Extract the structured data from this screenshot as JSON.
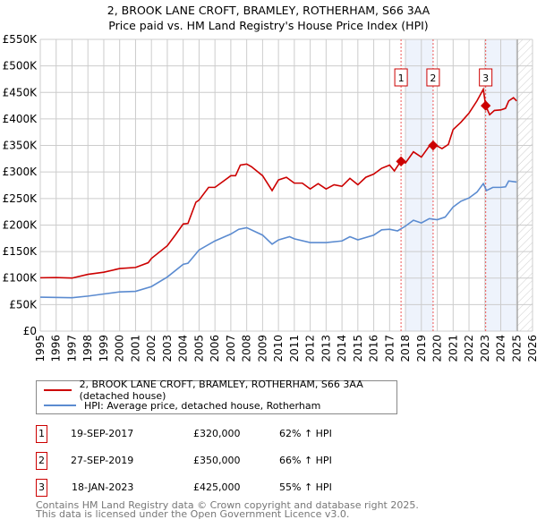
{
  "chart_data": {
    "type": "line",
    "title": "2, BROOK LANE CROFT, BRAMLEY, ROTHERHAM, S66 3AA",
    "subtitle": "Price paid vs. HM Land Registry's House Price Index (HPI)",
    "xlim": [
      1995,
      2026
    ],
    "ylim": [
      0,
      550000
    ],
    "grid": true,
    "y_ticks": [
      {
        "v": 0,
        "label": "£0"
      },
      {
        "v": 50000,
        "label": "£50K"
      },
      {
        "v": 100000,
        "label": "£100K"
      },
      {
        "v": 150000,
        "label": "£150K"
      },
      {
        "v": 200000,
        "label": "£200K"
      },
      {
        "v": 250000,
        "label": "£250K"
      },
      {
        "v": 300000,
        "label": "£300K"
      },
      {
        "v": 350000,
        "label": "£350K"
      },
      {
        "v": 400000,
        "label": "£400K"
      },
      {
        "v": 450000,
        "label": "£450K"
      },
      {
        "v": 500000,
        "label": "£500K"
      },
      {
        "v": 550000,
        "label": "£550K"
      }
    ],
    "x_ticks": [
      "1995",
      "1996",
      "1997",
      "1998",
      "1999",
      "2000",
      "2001",
      "2002",
      "2003",
      "2004",
      "2005",
      "2006",
      "2007",
      "2008",
      "2009",
      "2010",
      "2011",
      "2012",
      "2013",
      "2014",
      "2015",
      "2016",
      "2017",
      "2018",
      "2019",
      "2020",
      "2021",
      "2022",
      "2023",
      "2024",
      "2025",
      "2026"
    ],
    "series": [
      {
        "name": "2, BROOK LANE CROFT, BRAMLEY, ROTHERHAM, S66 3AA (detached house)",
        "color": "#cc0000",
        "points": [
          [
            1995,
            100600
          ],
          [
            1996,
            101000
          ],
          [
            1997,
            100000
          ],
          [
            1998,
            107000
          ],
          [
            1999,
            111000
          ],
          [
            2000,
            118000
          ],
          [
            2001,
            120000
          ],
          [
            2001.8,
            129000
          ],
          [
            2002,
            137000
          ],
          [
            2003,
            161000
          ],
          [
            2003.5,
            181000
          ],
          [
            2004,
            202000
          ],
          [
            2004.3,
            203000
          ],
          [
            2004.8,
            243000
          ],
          [
            2005,
            247000
          ],
          [
            2005.6,
            271000
          ],
          [
            2006,
            271000
          ],
          [
            2006.5,
            282000
          ],
          [
            2007,
            293000
          ],
          [
            2007.3,
            293000
          ],
          [
            2007.6,
            313000
          ],
          [
            2008,
            315000
          ],
          [
            2008.3,
            310000
          ],
          [
            2009,
            293000
          ],
          [
            2009.6,
            265000
          ],
          [
            2010,
            285000
          ],
          [
            2010.5,
            290000
          ],
          [
            2011,
            279000
          ],
          [
            2011.5,
            279000
          ],
          [
            2012,
            268000
          ],
          [
            2012.5,
            278000
          ],
          [
            2013,
            268000
          ],
          [
            2013.5,
            276000
          ],
          [
            2014,
            273000
          ],
          [
            2014.5,
            288000
          ],
          [
            2015,
            276000
          ],
          [
            2015.5,
            290000
          ],
          [
            2016,
            296000
          ],
          [
            2016.5,
            307000
          ],
          [
            2017,
            313000
          ],
          [
            2017.3,
            302000
          ],
          [
            2017.72,
            321000
          ],
          [
            2018,
            317000
          ],
          [
            2018.5,
            338000
          ],
          [
            2019,
            328000
          ],
          [
            2019.5,
            349000
          ],
          [
            2020,
            349000
          ],
          [
            2020.3,
            344000
          ],
          [
            2020.7,
            352000
          ],
          [
            2021,
            380000
          ],
          [
            2021.5,
            394000
          ],
          [
            2022,
            411000
          ],
          [
            2022.5,
            434000
          ],
          [
            2022.9,
            456000
          ],
          [
            2023.05,
            425000
          ],
          [
            2023.3,
            408000
          ],
          [
            2023.6,
            416000
          ],
          [
            2024,
            417000
          ],
          [
            2024.3,
            420000
          ],
          [
            2024.5,
            434000
          ],
          [
            2024.8,
            440000
          ],
          [
            2025,
            434000
          ]
        ]
      },
      {
        "name": "HPI: Average price, detached house, Rotherham",
        "color": "#5b8bd0",
        "points": [
          [
            1995,
            64000
          ],
          [
            1997,
            63000
          ],
          [
            1998,
            66000
          ],
          [
            1999,
            70000
          ],
          [
            2000,
            74000
          ],
          [
            2001,
            75000
          ],
          [
            2002,
            84000
          ],
          [
            2003,
            102000
          ],
          [
            2004,
            126000
          ],
          [
            2004.3,
            128000
          ],
          [
            2005,
            153000
          ],
          [
            2006,
            170000
          ],
          [
            2007,
            183000
          ],
          [
            2007.5,
            192000
          ],
          [
            2008,
            195000
          ],
          [
            2009,
            181000
          ],
          [
            2009.6,
            164000
          ],
          [
            2010,
            172000
          ],
          [
            2010.7,
            178000
          ],
          [
            2011,
            174000
          ],
          [
            2012,
            167000
          ],
          [
            2013,
            167000
          ],
          [
            2014,
            170000
          ],
          [
            2014.5,
            178000
          ],
          [
            2015,
            172000
          ],
          [
            2016,
            181000
          ],
          [
            2016.5,
            191000
          ],
          [
            2017,
            192000
          ],
          [
            2017.5,
            189000
          ],
          [
            2018,
            198000
          ],
          [
            2018.5,
            209000
          ],
          [
            2019,
            204000
          ],
          [
            2019.5,
            212000
          ],
          [
            2020,
            210000
          ],
          [
            2020.5,
            215000
          ],
          [
            2021,
            234000
          ],
          [
            2021.5,
            245000
          ],
          [
            2022,
            251000
          ],
          [
            2022.5,
            262000
          ],
          [
            2022.9,
            278000
          ],
          [
            2023.1,
            265000
          ],
          [
            2023.5,
            271000
          ],
          [
            2024,
            271000
          ],
          [
            2024.3,
            272000
          ],
          [
            2024.5,
            283000
          ],
          [
            2025,
            281000
          ]
        ]
      }
    ],
    "sales": [
      {
        "id": "1",
        "x": 2017.72,
        "price": 320000
      },
      {
        "id": "2",
        "x": 2019.74,
        "price": 350000
      },
      {
        "id": "3",
        "x": 2023.05,
        "price": 425000
      }
    ],
    "shaded_ranges": [
      [
        2018,
        2019.74
      ],
      [
        2023.05,
        2025.05
      ]
    ],
    "future_hatch_from": 2025.05
  },
  "legend": {
    "property": "2, BROOK LANE CROFT, BRAMLEY, ROTHERHAM, S66 3AA (detached house)",
    "hpi": "HPI: Average price, detached house, Rotherham"
  },
  "transactions": [
    {
      "num": "1",
      "date": "19-SEP-2017",
      "price": "£320,000",
      "hpi": "62% ↑ HPI"
    },
    {
      "num": "2",
      "date": "27-SEP-2019",
      "price": "£350,000",
      "hpi": "66% ↑ HPI"
    },
    {
      "num": "3",
      "date": "18-JAN-2023",
      "price": "£425,000",
      "hpi": "55% ↑ HPI"
    }
  ],
  "footer": {
    "line1": "Contains HM Land Registry data © Crown copyright and database right 2025.",
    "line2": "This data is licensed under the Open Government Licence v3.0."
  }
}
